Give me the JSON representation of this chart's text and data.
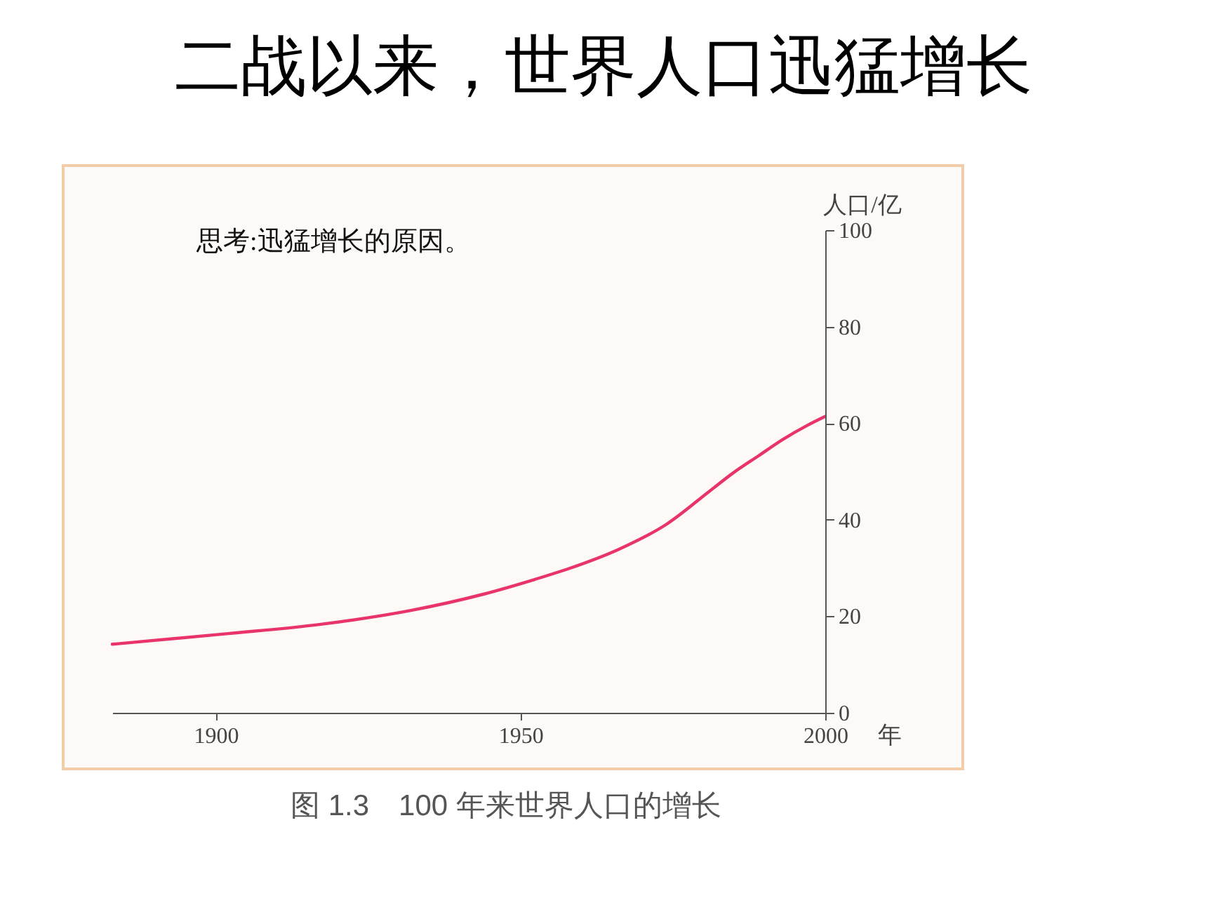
{
  "chart_data": {
    "type": "line",
    "title": "二战以来，世界人口迅猛增长",
    "xlabel": "年",
    "ylabel": "人口/亿",
    "x": [
      1883,
      1902,
      1917,
      1932,
      1944,
      1952,
      1958,
      1966,
      1974,
      1981,
      1985,
      1989,
      1993,
      1997,
      2000
    ],
    "series": [
      {
        "color": "#e8336b",
        "values": [
          14.2,
          16.4,
          18.3,
          21.2,
          24.6,
          27.5,
          29.9,
          33.8,
          39.1,
          45.9,
          49.8,
          53.2,
          56.6,
          59.5,
          61.4
        ]
      }
    ],
    "xlim": [
      1883,
      2000
    ],
    "ylim": [
      0,
      100
    ],
    "xticks": [
      1900,
      1950,
      2000
    ],
    "yticks": [
      0,
      20,
      40,
      60,
      80,
      100
    ],
    "grid": false,
    "line_style": "solid",
    "annotations": [
      "思考:迅猛增长的原因。",
      "图 1.3　100 年来世界人口的增长"
    ]
  }
}
